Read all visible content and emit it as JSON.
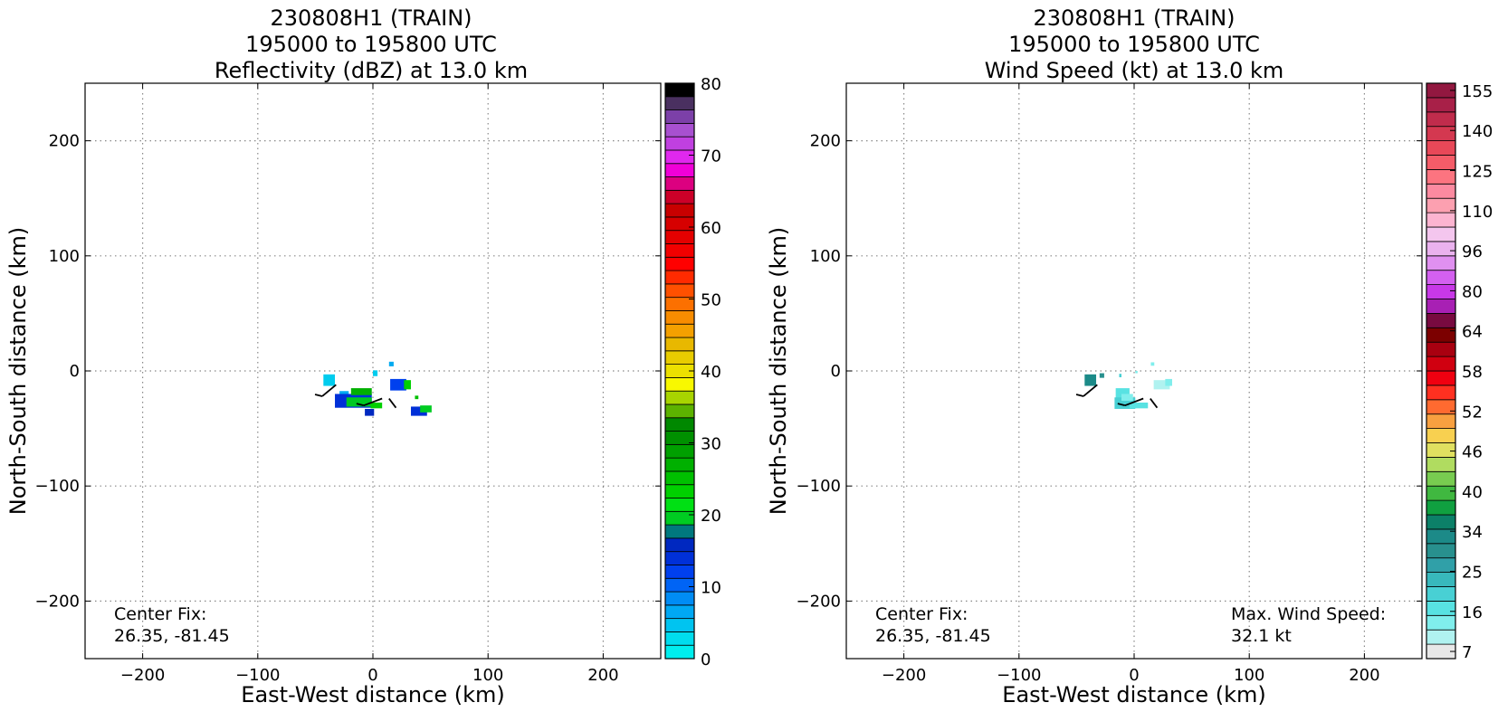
{
  "chart_data": [
    {
      "type": "heatmap",
      "title": [
        "230808H1 (TRAIN)",
        "195000 to 195800 UTC",
        "Reflectivity (dBZ) at 13.0 km"
      ],
      "xlabel": "East-West distance (km)",
      "ylabel": "North-South distance (km)",
      "xlim": [
        -250,
        250
      ],
      "ylim": [
        -250,
        250
      ],
      "xticks": [
        -200,
        -100,
        0,
        100,
        200
      ],
      "yticks": [
        -200,
        -100,
        0,
        100,
        200
      ],
      "xtick_labels": [
        "−200",
        "−100",
        "0",
        "100",
        "200"
      ],
      "ytick_labels": [
        "−200",
        "−100",
        "0",
        "100",
        "200"
      ],
      "grid": true,
      "annotations": [
        {
          "lines": [
            "Center Fix:",
            "26.35, -81.45"
          ],
          "position": "bottom-left"
        }
      ],
      "colorbar": {
        "ticks": [
          0,
          10,
          20,
          30,
          40,
          50,
          60,
          70,
          80
        ],
        "tick_labels": [
          "0",
          "10",
          "20",
          "30",
          "40",
          "50",
          "60",
          "70",
          "80"
        ],
        "colors": [
          "#00eeee",
          "#00ddee",
          "#00c4f0",
          "#00a8f4",
          "#008cf5",
          "#0064f5",
          "#0040ee",
          "#0030d8",
          "#0028c0",
          "#00787e",
          "#00cc22",
          "#00e014",
          "#00d000",
          "#00c000",
          "#00b000",
          "#00a000",
          "#009000",
          "#008800",
          "#5cb200",
          "#a8d400",
          "#f8f800",
          "#ece000",
          "#e8cc00",
          "#e8b800",
          "#f4a000",
          "#f88c00",
          "#fc7000",
          "#ff5000",
          "#ff2a00",
          "#ff0000",
          "#f20000",
          "#e40000",
          "#d60000",
          "#c80000",
          "#cc0028",
          "#dc0080",
          "#f000d8",
          "#e028ee",
          "#c040e0",
          "#a850d0",
          "#7c40a8",
          "#4a3060",
          "#000000"
        ]
      },
      "echoes": [
        {
          "x": -38,
          "y": -8,
          "w": 10,
          "h": 10,
          "c": "#00ccee"
        },
        {
          "x": -25,
          "y": -20,
          "w": 8,
          "h": 5,
          "c": "#00aaf0"
        },
        {
          "x": -17,
          "y": -26,
          "w": 32,
          "h": 12,
          "c": "#0030d8"
        },
        {
          "x": -12,
          "y": -27,
          "w": 22,
          "h": 8,
          "c": "#00c822"
        },
        {
          "x": -10,
          "y": -18,
          "w": 18,
          "h": 6,
          "c": "#00b000"
        },
        {
          "x": -3,
          "y": -36,
          "w": 8,
          "h": 6,
          "c": "#0028c0"
        },
        {
          "x": 3,
          "y": -30,
          "w": 10,
          "h": 5,
          "c": "#00d000"
        },
        {
          "x": 2,
          "y": -2,
          "w": 4,
          "h": 5,
          "c": "#00ccee"
        },
        {
          "x": 16,
          "y": 6,
          "w": 4,
          "h": 4,
          "c": "#00aaf0"
        },
        {
          "x": 22,
          "y": -12,
          "w": 14,
          "h": 10,
          "c": "#0040ee"
        },
        {
          "x": 30,
          "y": -12,
          "w": 6,
          "h": 8,
          "c": "#00d000"
        },
        {
          "x": 40,
          "y": -35,
          "w": 14,
          "h": 8,
          "c": "#0030d8"
        },
        {
          "x": 46,
          "y": -33,
          "w": 10,
          "h": 6,
          "c": "#00cc22"
        },
        {
          "x": 38,
          "y": -23,
          "w": 3,
          "h": 3,
          "c": "#00c000"
        }
      ]
    },
    {
      "type": "heatmap",
      "title": [
        "230808H1 (TRAIN)",
        "195000 to 195800 UTC",
        "Wind Speed (kt) at 13.0 km"
      ],
      "xlabel": "East-West distance (km)",
      "ylabel": "North-South distance (km)",
      "xlim": [
        -250,
        250
      ],
      "ylim": [
        -250,
        250
      ],
      "xticks": [
        -200,
        -100,
        0,
        100,
        200
      ],
      "yticks": [
        -200,
        -100,
        0,
        100,
        200
      ],
      "xtick_labels": [
        "−200",
        "−100",
        "0",
        "100",
        "200"
      ],
      "ytick_labels": [
        "−200",
        "−100",
        "0",
        "100",
        "200"
      ],
      "grid": true,
      "annotations": [
        {
          "lines": [
            "Center Fix:",
            "26.35, -81.45"
          ],
          "position": "bottom-left"
        },
        {
          "lines": [
            "Max. Wind Speed:",
            "32.1 kt"
          ],
          "position": "bottom-right"
        }
      ],
      "colorbar": {
        "ticks": [
          7,
          16,
          25,
          34,
          40,
          46,
          52,
          58,
          64,
          80,
          96,
          110,
          125,
          140,
          155
        ],
        "tick_labels": [
          "7",
          "16",
          "25",
          "34",
          "40",
          "46",
          "52",
          "58",
          "64",
          "80",
          "96",
          "110",
          "125",
          "140",
          "155"
        ],
        "colors": [
          "#e8e8e8",
          "#b0f2f0",
          "#80eeec",
          "#58e2e2",
          "#48d0d4",
          "#38b8bc",
          "#30a0a8",
          "#28908e",
          "#1c8a88",
          "#0c8068",
          "#10a040",
          "#40b840",
          "#78cc50",
          "#b0dc60",
          "#e0e060",
          "#f8d050",
          "#f8a040",
          "#ff6a30",
          "#ff3020",
          "#f00010",
          "#d00010",
          "#a80010",
          "#7c0000",
          "#780a40",
          "#a820b4",
          "#c838e8",
          "#d460f0",
          "#e090f0",
          "#eab2ee",
          "#f4c6ee",
          "#fcb4d0",
          "#fca0b0",
          "#fc8aa0",
          "#fc7480",
          "#f45c68",
          "#e84858",
          "#d43850",
          "#c02c4c",
          "#a82048",
          "#921840"
        ]
      },
      "echoes": [
        {
          "x": -38,
          "y": -8,
          "w": 10,
          "h": 10,
          "c": "#1c8a88"
        },
        {
          "x": -28,
          "y": -4,
          "w": 4,
          "h": 4,
          "c": "#28908e"
        },
        {
          "x": -10,
          "y": -20,
          "w": 12,
          "h": 10,
          "c": "#58e2e2"
        },
        {
          "x": -8,
          "y": -28,
          "w": 18,
          "h": 10,
          "c": "#48d0d4"
        },
        {
          "x": -6,
          "y": -23,
          "w": 10,
          "h": 6,
          "c": "#80eeec"
        },
        {
          "x": 4,
          "y": -30,
          "w": 16,
          "h": 5,
          "c": "#58e2e2"
        },
        {
          "x": -12,
          "y": -4,
          "w": 2,
          "h": 3,
          "c": "#48d0d4"
        },
        {
          "x": 2,
          "y": -1,
          "w": 2,
          "h": 2,
          "c": "#80eeec"
        },
        {
          "x": 16,
          "y": 6,
          "w": 3,
          "h": 3,
          "c": "#80eeec"
        },
        {
          "x": 24,
          "y": -12,
          "w": 14,
          "h": 8,
          "c": "#b0f2f0"
        },
        {
          "x": 30,
          "y": -10,
          "w": 6,
          "h": 6,
          "c": "#80eeec"
        }
      ]
    }
  ],
  "theme": {
    "grid_color": "#888888",
    "barb_color": "#000000"
  }
}
